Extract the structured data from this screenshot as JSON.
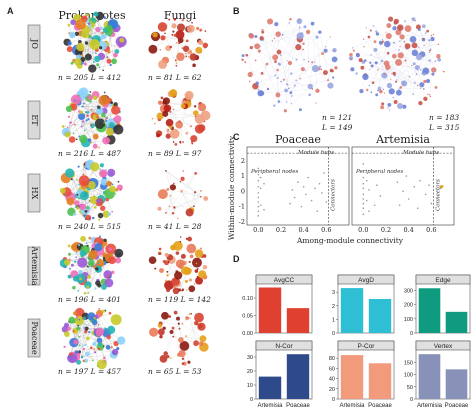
{
  "panel_letters": [
    "A",
    "B",
    "C",
    "D"
  ],
  "panel_a": {
    "columns": [
      "Prokaryotes",
      "Fungi"
    ],
    "rows": [
      {
        "label": "JO",
        "pro_n": "205",
        "pro_L": "412",
        "fun_n": "81",
        "fun_L": "62"
      },
      {
        "label": "ET",
        "pro_n": "216",
        "pro_L": "487",
        "fun_n": "89",
        "fun_L": "97"
      },
      {
        "label": "HX",
        "pro_n": "240",
        "pro_L": "515",
        "fun_n": "41",
        "fun_L": "28"
      },
      {
        "label": "Artemisia",
        "pro_n": "196",
        "pro_L": "401",
        "fun_n": "119",
        "fun_L": "142"
      },
      {
        "label": "Poaceae",
        "pro_n": "197",
        "pro_L": "457",
        "fun_n": "65",
        "fun_L": "53"
      }
    ]
  },
  "panel_b": {
    "networks": [
      {
        "name": "Poaceae",
        "n": "121",
        "L": "149"
      },
      {
        "name": "Artemisia",
        "n": "183",
        "L": "315"
      }
    ]
  },
  "colors": {
    "prokaryote_palette": [
      "#9b59d6",
      "#4ec04e",
      "#3c78d8",
      "#e67e22",
      "#f06fb8",
      "#25b5b5",
      "#c9c92a",
      "#e84c3d",
      "#333333",
      "#8ed1fc"
    ],
    "fungi_palette": [
      "#b81d13",
      "#d64532",
      "#ea7b5a",
      "#c0392b",
      "#8b1a10",
      "#f0a080",
      "#e6a117"
    ],
    "panel_b_palette": [
      "#6d83d6",
      "#e07b6e",
      "#9aa6e0",
      "#c9544a"
    ],
    "bar_avgcc": "#e0402f",
    "bar_avgd": "#2fbfd4",
    "bar_edge": "#0f9b80",
    "bar_ncor": "#2f4a8a",
    "bar_pcor": "#f19a7c",
    "bar_vertex": "#8892b8"
  },
  "chart_data": [
    {
      "type": "scatter",
      "title": "Poaceae",
      "xlabel": "Among-module connectivity",
      "ylabel": "Within-module connectivity",
      "xlim": [
        -0.1,
        0.8
      ],
      "ylim": [
        -2.2,
        2.9
      ],
      "xticks": [
        "0.0",
        "0.2",
        "0.4",
        "0.6"
      ],
      "yticks": [
        "-2",
        "-1",
        "0",
        "1",
        "2"
      ],
      "thresholds": {
        "x": 0.62,
        "y": 2.5
      },
      "region_labels": [
        "Module hubs",
        "Peripheral nodes",
        "Connectors"
      ],
      "points": [
        [
          0.0,
          -1.6
        ],
        [
          0.0,
          -1.3
        ],
        [
          0.0,
          -1.0
        ],
        [
          0.0,
          -0.7
        ],
        [
          0.0,
          -0.4
        ],
        [
          0.0,
          -0.1
        ],
        [
          0.0,
          0.3
        ],
        [
          0.0,
          0.7
        ],
        [
          0.0,
          1.1
        ],
        [
          0.0,
          1.5
        ],
        [
          0.02,
          -0.9
        ],
        [
          0.02,
          0.2
        ],
        [
          0.02,
          0.9
        ],
        [
          0.05,
          -1.2
        ],
        [
          0.05,
          0.5
        ],
        [
          0.28,
          -0.8
        ],
        [
          0.3,
          0.1
        ],
        [
          0.32,
          -0.4
        ],
        [
          0.35,
          0.6
        ],
        [
          0.38,
          -1.0
        ],
        [
          0.4,
          0.3
        ],
        [
          0.42,
          -0.2
        ],
        [
          0.44,
          0.9
        ],
        [
          0.47,
          -0.6
        ],
        [
          0.5,
          0.2
        ],
        [
          0.52,
          -1.3
        ],
        [
          0.54,
          0.5
        ],
        [
          0.56,
          -0.1
        ],
        [
          0.58,
          1.2
        ],
        [
          0.6,
          -0.7
        ]
      ]
    },
    {
      "type": "scatter",
      "title": "Artemisia",
      "xlabel": "Among-module connectivity",
      "ylabel": "Within-module connectivity",
      "xlim": [
        -0.1,
        0.8
      ],
      "ylim": [
        -2.2,
        2.9
      ],
      "xticks": [
        "0.0",
        "0.2",
        "0.4",
        "0.6"
      ],
      "yticks": [
        "-2",
        "-1",
        "0",
        "1",
        "2"
      ],
      "thresholds": {
        "x": 0.62,
        "y": 2.5
      },
      "region_labels": [
        "Module hubs",
        "Peripheral nodes",
        "Connectors"
      ],
      "points": [
        [
          0.0,
          -1.5
        ],
        [
          0.0,
          -1.1
        ],
        [
          0.0,
          -0.8
        ],
        [
          0.0,
          -0.5
        ],
        [
          0.0,
          -0.2
        ],
        [
          0.0,
          0.2
        ],
        [
          0.0,
          0.5
        ],
        [
          0.0,
          0.9
        ],
        [
          0.0,
          1.3
        ],
        [
          0.0,
          1.8
        ],
        [
          0.03,
          -0.6
        ],
        [
          0.03,
          0.7
        ],
        [
          0.05,
          -1.3
        ],
        [
          0.05,
          0.1
        ],
        [
          0.1,
          -0.9
        ],
        [
          0.12,
          0.4
        ],
        [
          0.15,
          -0.3
        ],
        [
          0.3,
          0.6
        ],
        [
          0.32,
          -0.9
        ],
        [
          0.35,
          0.0
        ],
        [
          0.38,
          1.0
        ],
        [
          0.4,
          -0.5
        ],
        [
          0.45,
          0.3
        ],
        [
          0.48,
          -1.1
        ],
        [
          0.5,
          0.7
        ],
        [
          0.55,
          -0.2
        ],
        [
          0.58,
          0.4
        ],
        [
          0.6,
          -0.8
        ],
        [
          0.65,
          0.0
        ],
        [
          0.66,
          -0.5
        ],
        [
          0.68,
          0.2
        ],
        [
          0.7,
          0.35
        ]
      ],
      "highlight_points": [
        [
          0.69,
          0.3
        ]
      ]
    },
    {
      "type": "bar",
      "title": "AvgCC",
      "categories": [
        "Artemisia",
        "Poaceae"
      ],
      "values": [
        0.13,
        0.071
      ],
      "ylim": [
        0,
        0.14
      ],
      "yticks": [
        "0.00",
        "0.05",
        "0.10"
      ],
      "colors": [
        "#e0402f",
        "#e0402f"
      ]
    },
    {
      "type": "bar",
      "title": "AvgD",
      "categories": [
        "Artemisia",
        "Poaceae"
      ],
      "values": [
        3.3,
        2.5
      ],
      "ylim": [
        0,
        3.6
      ],
      "yticks": [
        "0",
        "1",
        "2",
        "3"
      ],
      "colors": [
        "#2fbfd4",
        "#2fbfd4"
      ]
    },
    {
      "type": "bar",
      "title": "Edge",
      "categories": [
        "Artemisia",
        "Poaceae"
      ],
      "values": [
        315,
        149
      ],
      "ylim": [
        0,
        345
      ],
      "yticks": [
        "0",
        "100",
        "200",
        "300"
      ],
      "colors": [
        "#0f9b80",
        "#0f9b80"
      ]
    },
    {
      "type": "bar",
      "title": "N-Cor",
      "categories": [
        "Artemisia",
        "Poaceae"
      ],
      "values": [
        16,
        32
      ],
      "ylim": [
        0,
        35
      ],
      "yticks": [
        "0",
        "10",
        "20",
        "30"
      ],
      "colors": [
        "#2f4a8a",
        "#2f4a8a"
      ]
    },
    {
      "type": "bar",
      "title": "P-Cor",
      "categories": [
        "Artemisia",
        "Poaceae"
      ],
      "values": [
        86,
        70
      ],
      "ylim": [
        0,
        96
      ],
      "yticks": [
        "0",
        "20",
        "40",
        "60",
        "80"
      ],
      "colors": [
        "#f19a7c",
        "#f19a7c"
      ]
    },
    {
      "type": "bar",
      "title": "Vertex",
      "categories": [
        "Artemisia",
        "Poaceae"
      ],
      "values": [
        183,
        121
      ],
      "ylim": [
        0,
        200
      ],
      "yticks": [
        "0",
        "50",
        "100",
        "150"
      ],
      "colors": [
        "#8892b8",
        "#8892b8"
      ]
    }
  ]
}
